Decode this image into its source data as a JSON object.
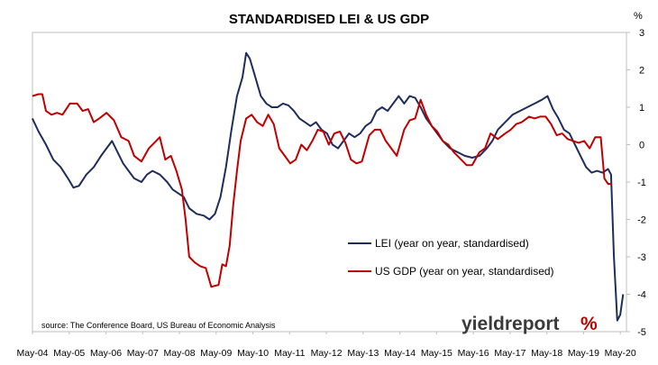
{
  "chart_data": {
    "type": "line",
    "title": "STANDARDISED LEI & US GDP",
    "ylabel": "%",
    "ylim": [
      -5,
      3
    ],
    "yticks": [
      3,
      2,
      1,
      0,
      -1,
      -2,
      -3,
      -4,
      -5
    ],
    "xlim": [
      2004.333,
      2020.5
    ],
    "xticks": [
      {
        "label": "May-04",
        "x": 2004.333
      },
      {
        "label": "May-05",
        "x": 2005.333
      },
      {
        "label": "May-06",
        "x": 2006.333
      },
      {
        "label": "May-07",
        "x": 2007.333
      },
      {
        "label": "May-08",
        "x": 2008.333
      },
      {
        "label": "May-09",
        "x": 2009.333
      },
      {
        "label": "May-10",
        "x": 2010.333
      },
      {
        "label": "May-11",
        "x": 2011.333
      },
      {
        "label": "May-12",
        "x": 2012.333
      },
      {
        "label": "May-13",
        "x": 2013.333
      },
      {
        "label": "May-14",
        "x": 2014.333
      },
      {
        "label": "May-15",
        "x": 2015.333
      },
      {
        "label": "May-16",
        "x": 2016.333
      },
      {
        "label": "May-17",
        "x": 2017.333
      },
      {
        "label": "May-18",
        "x": 2018.333
      },
      {
        "label": "May-19",
        "x": 2019.333
      },
      {
        "label": "May-20",
        "x": 2020.333
      }
    ],
    "grid": false,
    "legend_position": "center-right",
    "series": [
      {
        "name": "LEI (year on year, standardised)",
        "color": "#1f2d5c",
        "points": [
          [
            2004.33,
            0.7
          ],
          [
            2004.5,
            0.35
          ],
          [
            2004.7,
            0.0
          ],
          [
            2004.9,
            -0.4
          ],
          [
            2005.1,
            -0.6
          ],
          [
            2005.3,
            -0.9
          ],
          [
            2005.45,
            -1.15
          ],
          [
            2005.6,
            -1.1
          ],
          [
            2005.8,
            -0.8
          ],
          [
            2006.0,
            -0.6
          ],
          [
            2006.2,
            -0.3
          ],
          [
            2006.35,
            -0.1
          ],
          [
            2006.5,
            0.1
          ],
          [
            2006.65,
            -0.2
          ],
          [
            2006.8,
            -0.5
          ],
          [
            2006.95,
            -0.7
          ],
          [
            2007.1,
            -0.9
          ],
          [
            2007.3,
            -1.0
          ],
          [
            2007.45,
            -0.8
          ],
          [
            2007.6,
            -0.7
          ],
          [
            2007.8,
            -0.8
          ],
          [
            2008.0,
            -1.0
          ],
          [
            2008.15,
            -1.2
          ],
          [
            2008.3,
            -1.3
          ],
          [
            2008.45,
            -1.4
          ],
          [
            2008.6,
            -1.7
          ],
          [
            2008.8,
            -1.85
          ],
          [
            2009.0,
            -1.9
          ],
          [
            2009.15,
            -2.0
          ],
          [
            2009.3,
            -1.85
          ],
          [
            2009.45,
            -1.4
          ],
          [
            2009.6,
            -0.6
          ],
          [
            2009.75,
            0.4
          ],
          [
            2009.9,
            1.3
          ],
          [
            2010.05,
            1.8
          ],
          [
            2010.15,
            2.45
          ],
          [
            2010.25,
            2.3
          ],
          [
            2010.4,
            1.8
          ],
          [
            2010.55,
            1.3
          ],
          [
            2010.7,
            1.1
          ],
          [
            2010.85,
            1.0
          ],
          [
            2011.0,
            1.0
          ],
          [
            2011.15,
            1.1
          ],
          [
            2011.3,
            1.05
          ],
          [
            2011.45,
            0.9
          ],
          [
            2011.6,
            0.7
          ],
          [
            2011.75,
            0.6
          ],
          [
            2011.9,
            0.5
          ],
          [
            2012.05,
            0.6
          ],
          [
            2012.2,
            0.4
          ],
          [
            2012.35,
            0.3
          ],
          [
            2012.5,
            0.0
          ],
          [
            2012.65,
            -0.1
          ],
          [
            2012.8,
            0.1
          ],
          [
            2012.95,
            0.3
          ],
          [
            2013.1,
            0.2
          ],
          [
            2013.25,
            0.3
          ],
          [
            2013.4,
            0.5
          ],
          [
            2013.55,
            0.6
          ],
          [
            2013.7,
            0.9
          ],
          [
            2013.85,
            1.0
          ],
          [
            2014.0,
            0.9
          ],
          [
            2014.15,
            1.1
          ],
          [
            2014.3,
            1.3
          ],
          [
            2014.45,
            1.1
          ],
          [
            2014.6,
            1.3
          ],
          [
            2014.75,
            1.25
          ],
          [
            2014.9,
            1.0
          ],
          [
            2015.05,
            0.7
          ],
          [
            2015.2,
            0.5
          ],
          [
            2015.35,
            0.3
          ],
          [
            2015.5,
            0.1
          ],
          [
            2015.7,
            -0.1
          ],
          [
            2015.9,
            -0.2
          ],
          [
            2016.1,
            -0.3
          ],
          [
            2016.3,
            -0.35
          ],
          [
            2016.5,
            -0.3
          ],
          [
            2016.7,
            -0.1
          ],
          [
            2016.85,
            0.1
          ],
          [
            2017.0,
            0.4
          ],
          [
            2017.2,
            0.6
          ],
          [
            2017.4,
            0.8
          ],
          [
            2017.6,
            0.9
          ],
          [
            2017.8,
            1.0
          ],
          [
            2018.0,
            1.1
          ],
          [
            2018.2,
            1.2
          ],
          [
            2018.35,
            1.3
          ],
          [
            2018.5,
            0.95
          ],
          [
            2018.65,
            0.7
          ],
          [
            2018.8,
            0.4
          ],
          [
            2018.95,
            0.3
          ],
          [
            2019.1,
            0.0
          ],
          [
            2019.25,
            -0.3
          ],
          [
            2019.4,
            -0.6
          ],
          [
            2019.55,
            -0.75
          ],
          [
            2019.7,
            -0.7
          ],
          [
            2019.85,
            -0.75
          ],
          [
            2020.0,
            -0.65
          ],
          [
            2020.08,
            -0.8
          ],
          [
            2020.16,
            -3.0
          ],
          [
            2020.25,
            -4.7
          ],
          [
            2020.33,
            -4.55
          ],
          [
            2020.41,
            -4.0
          ]
        ]
      },
      {
        "name": "US GDP (year on year, standardised)",
        "color": "#c00000",
        "points": [
          [
            2004.33,
            1.3
          ],
          [
            2004.5,
            1.35
          ],
          [
            2004.6,
            1.35
          ],
          [
            2004.7,
            0.9
          ],
          [
            2004.85,
            0.8
          ],
          [
            2005.0,
            0.85
          ],
          [
            2005.15,
            0.8
          ],
          [
            2005.35,
            1.1
          ],
          [
            2005.55,
            1.1
          ],
          [
            2005.7,
            0.9
          ],
          [
            2005.85,
            0.95
          ],
          [
            2006.0,
            0.6
          ],
          [
            2006.15,
            0.7
          ],
          [
            2006.35,
            0.85
          ],
          [
            2006.55,
            0.65
          ],
          [
            2006.75,
            0.2
          ],
          [
            2006.95,
            0.1
          ],
          [
            2007.1,
            -0.3
          ],
          [
            2007.3,
            -0.45
          ],
          [
            2007.5,
            -0.1
          ],
          [
            2007.65,
            0.05
          ],
          [
            2007.8,
            0.2
          ],
          [
            2007.95,
            -0.4
          ],
          [
            2008.1,
            -0.3
          ],
          [
            2008.25,
            -0.7
          ],
          [
            2008.4,
            -1.2
          ],
          [
            2008.5,
            -2.0
          ],
          [
            2008.6,
            -3.0
          ],
          [
            2008.75,
            -3.15
          ],
          [
            2008.9,
            -3.25
          ],
          [
            2009.05,
            -3.3
          ],
          [
            2009.2,
            -3.8
          ],
          [
            2009.4,
            -3.75
          ],
          [
            2009.5,
            -3.2
          ],
          [
            2009.6,
            -3.25
          ],
          [
            2009.7,
            -2.7
          ],
          [
            2009.8,
            -1.6
          ],
          [
            2009.9,
            -0.7
          ],
          [
            2010.0,
            0.1
          ],
          [
            2010.15,
            0.7
          ],
          [
            2010.3,
            0.8
          ],
          [
            2010.45,
            0.6
          ],
          [
            2010.6,
            0.5
          ],
          [
            2010.75,
            0.8
          ],
          [
            2010.9,
            0.55
          ],
          [
            2011.05,
            -0.1
          ],
          [
            2011.2,
            -0.3
          ],
          [
            2011.35,
            -0.5
          ],
          [
            2011.5,
            -0.4
          ],
          [
            2011.65,
            0.0
          ],
          [
            2011.8,
            -0.15
          ],
          [
            2011.95,
            0.1
          ],
          [
            2012.1,
            0.4
          ],
          [
            2012.25,
            0.35
          ],
          [
            2012.4,
            0.0
          ],
          [
            2012.55,
            0.3
          ],
          [
            2012.7,
            0.35
          ],
          [
            2012.85,
            0.05
          ],
          [
            2013.0,
            -0.4
          ],
          [
            2013.15,
            -0.5
          ],
          [
            2013.3,
            -0.45
          ],
          [
            2013.5,
            0.25
          ],
          [
            2013.65,
            0.4
          ],
          [
            2013.8,
            0.4
          ],
          [
            2013.95,
            0.1
          ],
          [
            2014.1,
            -0.1
          ],
          [
            2014.25,
            -0.3
          ],
          [
            2014.45,
            0.4
          ],
          [
            2014.6,
            0.65
          ],
          [
            2014.75,
            0.7
          ],
          [
            2014.9,
            1.2
          ],
          [
            2015.05,
            0.8
          ],
          [
            2015.2,
            0.5
          ],
          [
            2015.35,
            0.35
          ],
          [
            2015.5,
            0.1
          ],
          [
            2015.65,
            0.0
          ],
          [
            2015.8,
            -0.2
          ],
          [
            2016.0,
            -0.4
          ],
          [
            2016.15,
            -0.55
          ],
          [
            2016.3,
            -0.55
          ],
          [
            2016.5,
            -0.2
          ],
          [
            2016.65,
            -0.1
          ],
          [
            2016.8,
            0.3
          ],
          [
            2017.0,
            0.15
          ],
          [
            2017.2,
            0.3
          ],
          [
            2017.35,
            0.4
          ],
          [
            2017.5,
            0.55
          ],
          [
            2017.65,
            0.6
          ],
          [
            2017.85,
            0.75
          ],
          [
            2018.0,
            0.7
          ],
          [
            2018.15,
            0.75
          ],
          [
            2018.3,
            0.75
          ],
          [
            2018.45,
            0.55
          ],
          [
            2018.6,
            0.25
          ],
          [
            2018.75,
            0.3
          ],
          [
            2018.9,
            0.15
          ],
          [
            2019.05,
            0.1
          ],
          [
            2019.2,
            0.05
          ],
          [
            2019.35,
            0.1
          ],
          [
            2019.5,
            -0.1
          ],
          [
            2019.65,
            0.2
          ],
          [
            2019.8,
            0.2
          ],
          [
            2019.9,
            -0.9
          ],
          [
            2020.0,
            -1.05
          ],
          [
            2020.1,
            -1.05
          ]
        ]
      }
    ]
  },
  "source_note": "source: The Conference Board, US Bureau of Economic Analysis",
  "logo": {
    "text": "yieldreport",
    "symbol": "%"
  }
}
